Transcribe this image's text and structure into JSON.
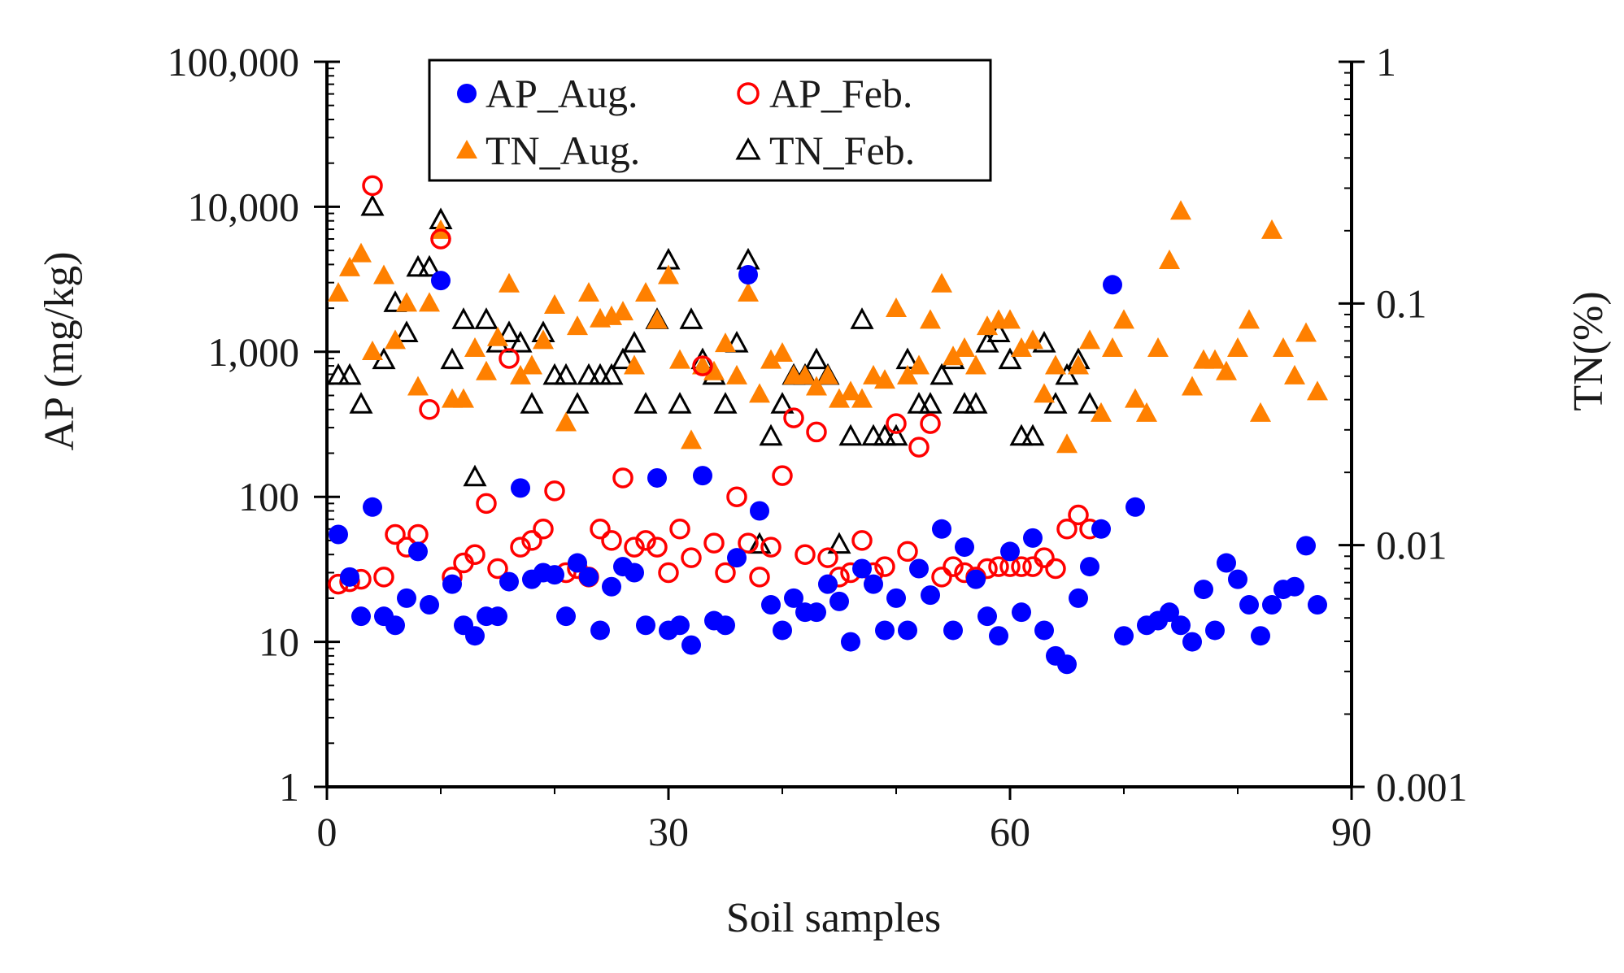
{
  "chart_data": {
    "type": "scatter",
    "xlabel": "Soil samples",
    "ylabel_left": "AP (mg/kg)",
    "ylabel_right": "TN(%)",
    "xlim": [
      0,
      90
    ],
    "ylim_left": [
      1,
      100000
    ],
    "ylim_right": [
      0.001,
      1
    ],
    "yscale": "log",
    "x_ticks": [
      "0",
      "30",
      "60",
      "90"
    ],
    "y_ticks_left": [
      "1",
      "10",
      "100",
      "1,000",
      "10,000",
      "100,000"
    ],
    "y_ticks_right": [
      "0.001",
      "0.01",
      "0.1",
      "1"
    ],
    "legend": [
      "AP_Aug.",
      "AP_Feb.",
      "TN_Aug.",
      "TN_Feb."
    ],
    "series": [
      {
        "name": "AP_Aug.",
        "axis": "left",
        "marker": "filled-circle",
        "color": "#0000ff",
        "x": [
          1,
          2,
          3,
          4,
          5,
          6,
          7,
          8,
          9,
          10,
          11,
          12,
          13,
          14,
          15,
          16,
          17,
          18,
          19,
          20,
          21,
          22,
          23,
          24,
          25,
          26,
          27,
          28,
          29,
          30,
          31,
          32,
          33,
          34,
          35,
          36,
          37,
          38,
          39,
          40,
          41,
          42,
          43,
          44,
          45,
          46,
          47,
          48,
          49,
          50,
          51,
          52,
          53,
          54,
          55,
          56,
          57,
          58,
          59,
          60,
          61,
          62,
          63,
          64,
          65,
          66,
          67,
          68,
          69,
          70,
          71,
          72,
          73,
          74,
          75,
          76,
          77,
          78,
          79,
          80,
          81,
          82,
          83,
          84,
          85,
          86,
          87
        ],
        "y": [
          55,
          28,
          15,
          85,
          15,
          13,
          20,
          42,
          18,
          3100,
          25,
          13,
          11,
          15,
          15,
          26,
          115,
          27,
          30,
          29,
          15,
          35,
          28,
          12,
          24,
          33,
          30,
          13,
          135,
          12,
          13,
          9.5,
          140,
          14,
          13,
          38,
          3400,
          80,
          18,
          12,
          20,
          16,
          16,
          25,
          19,
          10,
          32,
          25,
          12,
          20,
          12,
          32,
          21,
          60,
          12,
          45,
          27,
          15,
          11,
          42,
          16,
          52,
          12,
          8,
          7,
          20,
          33,
          60,
          2900,
          11,
          85,
          13,
          14,
          16,
          13,
          10,
          23,
          12,
          35,
          27,
          18,
          11,
          18,
          23,
          24,
          46,
          18
        ]
      },
      {
        "name": "AP_Feb.",
        "axis": "left",
        "marker": "open-circle",
        "color": "#ff0000",
        "x": [
          1,
          2,
          3,
          4,
          5,
          6,
          7,
          8,
          9,
          10,
          11,
          12,
          13,
          14,
          15,
          16,
          17,
          18,
          19,
          20,
          21,
          22,
          23,
          24,
          25,
          26,
          27,
          28,
          29,
          30,
          31,
          32,
          33,
          34,
          35,
          36,
          37,
          38,
          39,
          40,
          41,
          42,
          43,
          44,
          45,
          46,
          47,
          48,
          49,
          50,
          51,
          52,
          53,
          54,
          55,
          56,
          57,
          58,
          59,
          60,
          61,
          62,
          63,
          64,
          65,
          66,
          67
        ],
        "y": [
          25,
          26,
          27,
          14000,
          28,
          55,
          45,
          55,
          400,
          6000,
          28,
          35,
          40,
          90,
          32,
          900,
          45,
          50,
          60,
          110,
          30,
          32,
          28,
          60,
          50,
          135,
          45,
          50,
          45,
          30,
          60,
          38,
          800,
          48,
          30,
          100,
          48,
          28,
          45,
          140,
          350,
          40,
          280,
          38,
          28,
          30,
          50,
          30,
          33,
          320,
          42,
          220,
          320,
          28,
          33,
          30,
          28,
          32,
          33,
          33,
          33,
          33,
          38,
          32,
          60,
          75,
          60
        ],
        "x_note": "index"
      },
      {
        "name": "TN_Aug.",
        "axis": "right",
        "marker": "filled-triangle",
        "color": "#ff8000",
        "x": [
          1,
          2,
          3,
          4,
          5,
          6,
          7,
          8,
          9,
          10,
          11,
          12,
          13,
          14,
          15,
          16,
          17,
          18,
          19,
          20,
          21,
          22,
          23,
          24,
          25,
          26,
          27,
          28,
          29,
          30,
          31,
          32,
          33,
          34,
          35,
          36,
          37,
          38,
          39,
          40,
          41,
          42,
          43,
          44,
          45,
          46,
          47,
          48,
          49,
          50,
          51,
          52,
          53,
          54,
          55,
          56,
          57,
          58,
          59,
          60,
          61,
          62,
          63,
          64,
          65,
          66,
          67,
          68,
          69,
          70,
          71,
          72,
          73,
          74,
          75,
          76,
          77,
          78,
          79,
          80,
          81,
          82,
          83,
          84,
          85,
          86,
          87
        ],
        "y": [
          0.11,
          0.14,
          0.16,
          0.063,
          0.13,
          0.07,
          0.1,
          0.045,
          0.1,
          0.2,
          0.04,
          0.04,
          0.065,
          0.052,
          0.072,
          0.12,
          0.05,
          0.055,
          0.07,
          0.098,
          0.032,
          0.08,
          0.11,
          0.086,
          0.088,
          0.092,
          0.055,
          0.11,
          0.085,
          0.13,
          0.058,
          0.027,
          0.055,
          0.052,
          0.068,
          0.05,
          0.11,
          0.042,
          0.058,
          0.062,
          0.05,
          0.05,
          0.045,
          0.05,
          0.04,
          0.043,
          0.04,
          0.05,
          0.048,
          0.095,
          0.05,
          0.055,
          0.085,
          0.12,
          0.06,
          0.065,
          0.055,
          0.08,
          0.085,
          0.085,
          0.065,
          0.07,
          0.042,
          0.055,
          0.026,
          0.055,
          0.07,
          0.035,
          0.065,
          0.085,
          0.04,
          0.035,
          0.065,
          0.15,
          0.24,
          0.045,
          0.058,
          0.058,
          0.052,
          0.065,
          0.085,
          0.035,
          0.2,
          0.065,
          0.05,
          0.075,
          0.043
        ]
      },
      {
        "name": "TN_Feb.",
        "axis": "right",
        "marker": "open-triangle",
        "color": "#000000",
        "x": [
          1,
          2,
          3,
          4,
          5,
          6,
          7,
          8,
          9,
          10,
          11,
          12,
          13,
          14,
          15,
          16,
          17,
          18,
          19,
          20,
          21,
          22,
          23,
          24,
          25,
          26,
          27,
          28,
          29,
          30,
          31,
          32,
          33,
          34,
          35,
          36,
          37,
          38,
          39,
          40,
          41,
          42,
          43,
          44,
          45,
          46,
          47,
          48,
          49,
          50,
          51,
          52,
          53,
          54,
          55,
          56,
          57,
          58,
          59,
          60,
          61,
          62,
          63,
          64,
          65,
          66,
          67
        ],
        "y": [
          0.05,
          0.05,
          0.038,
          0.25,
          0.058,
          0.1,
          0.075,
          0.14,
          0.14,
          0.22,
          0.058,
          0.085,
          0.019,
          0.085,
          0.068,
          0.075,
          0.068,
          0.038,
          0.075,
          0.05,
          0.05,
          0.038,
          0.05,
          0.05,
          0.05,
          0.058,
          0.068,
          0.038,
          0.085,
          0.15,
          0.038,
          0.085,
          0.058,
          0.05,
          0.038,
          0.068,
          0.15,
          0.01,
          0.028,
          0.038,
          0.05,
          0.05,
          0.058,
          0.05,
          0.01,
          0.028,
          0.085,
          0.028,
          0.028,
          0.028,
          0.058,
          0.038,
          0.038,
          0.05,
          0.058,
          0.038,
          0.038,
          0.068,
          0.075,
          0.058,
          0.028,
          0.028,
          0.068,
          0.038,
          0.05,
          0.058,
          0.038
        ]
      }
    ]
  }
}
